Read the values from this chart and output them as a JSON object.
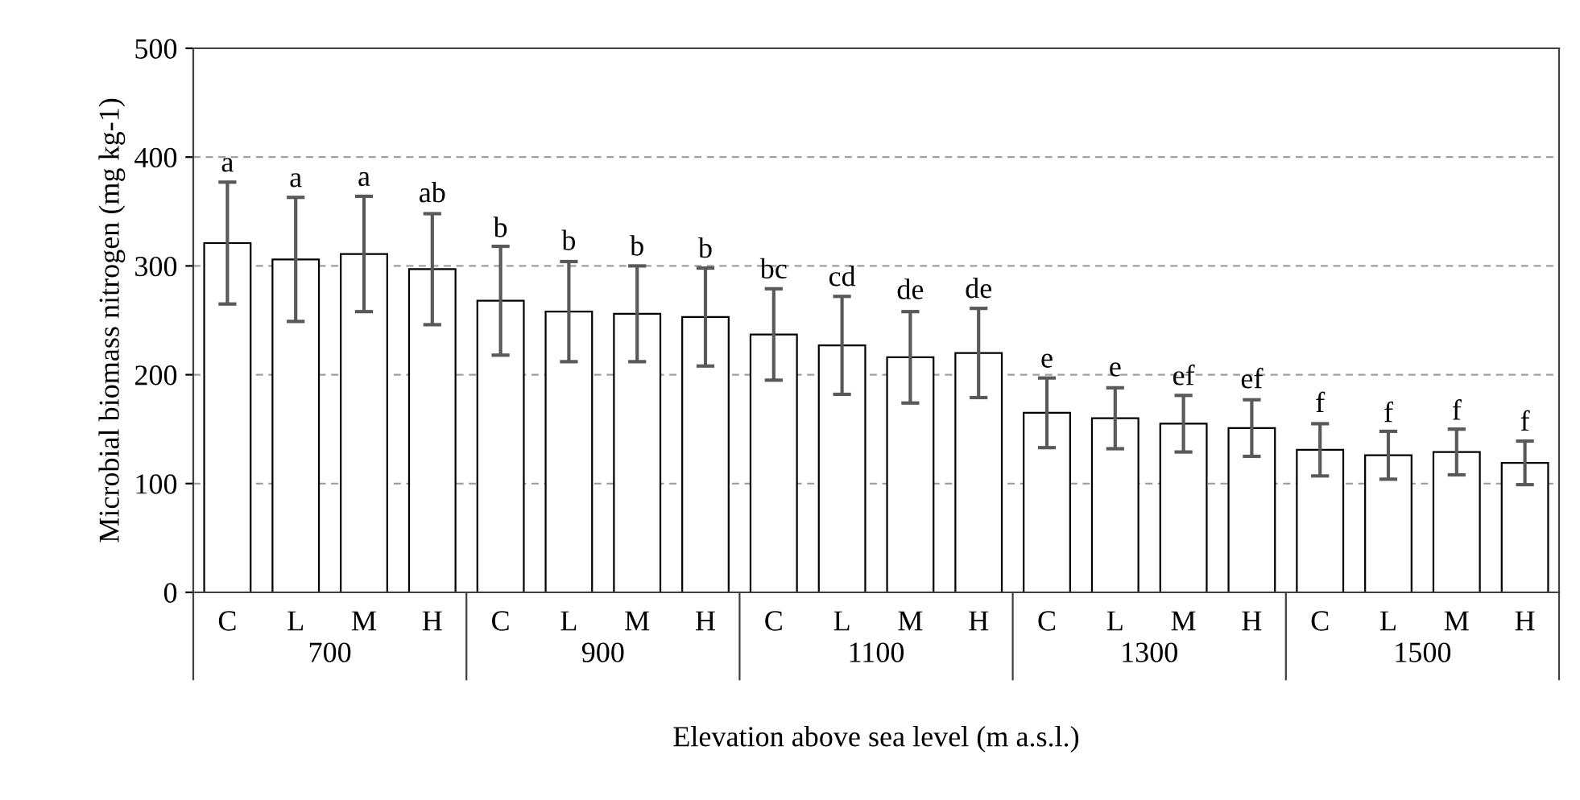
{
  "chart_data": {
    "type": "bar",
    "ylabel": "Microbial biomass nitrogen (mg kg-1)",
    "xlabel": "Elevation above sea level (m a.s.l.)",
    "categories": [
      "C",
      "L",
      "M",
      "H",
      "C",
      "L",
      "M",
      "H",
      "C",
      "L",
      "M",
      "H",
      "C",
      "L",
      "M",
      "H",
      "C",
      "L",
      "M",
      "H"
    ],
    "series": [
      {
        "color": "#ffffff",
        "values": [
          321,
          306,
          311,
          297,
          268,
          258,
          256,
          253,
          237,
          227,
          216,
          220,
          165,
          160,
          155,
          151,
          131,
          126,
          129,
          119
        ],
        "errors": [
          56,
          57,
          53,
          51,
          50,
          46,
          44,
          45,
          42,
          45,
          42,
          41,
          32,
          28,
          26,
          26,
          24,
          22,
          21,
          20
        ]
      }
    ],
    "ylim": [
      0,
      500
    ],
    "yticks": [
      0,
      100,
      200,
      300,
      400,
      500
    ],
    "grid": "y",
    "annotations": [
      "700",
      "900",
      "1100",
      "1300",
      "1500",
      {
        "text": "a",
        "y": 377
      },
      {
        "text": "a",
        "y": 363
      },
      {
        "text": "a",
        "y": 364
      },
      {
        "text": "ab",
        "y": 349
      },
      {
        "text": "b",
        "y": 317
      },
      {
        "text": "b",
        "y": 305
      },
      {
        "text": "b",
        "y": 300
      },
      {
        "text": "b",
        "y": 298
      },
      {
        "text": "bc",
        "y": 279
      },
      {
        "text": "cd",
        "y": 272
      },
      {
        "text": "de",
        "y": 260
      },
      {
        "text": "de",
        "y": 261
      },
      {
        "text": "e",
        "y": 197
      },
      {
        "text": "e",
        "y": 189
      },
      {
        "text": "ef",
        "y": 181
      },
      {
        "text": "ef",
        "y": 178
      },
      {
        "text": "f",
        "y": 156
      },
      {
        "text": "f",
        "y": 147
      },
      {
        "text": "f",
        "y": 149
      },
      {
        "text": "f",
        "y": 139
      }
    ]
  }
}
